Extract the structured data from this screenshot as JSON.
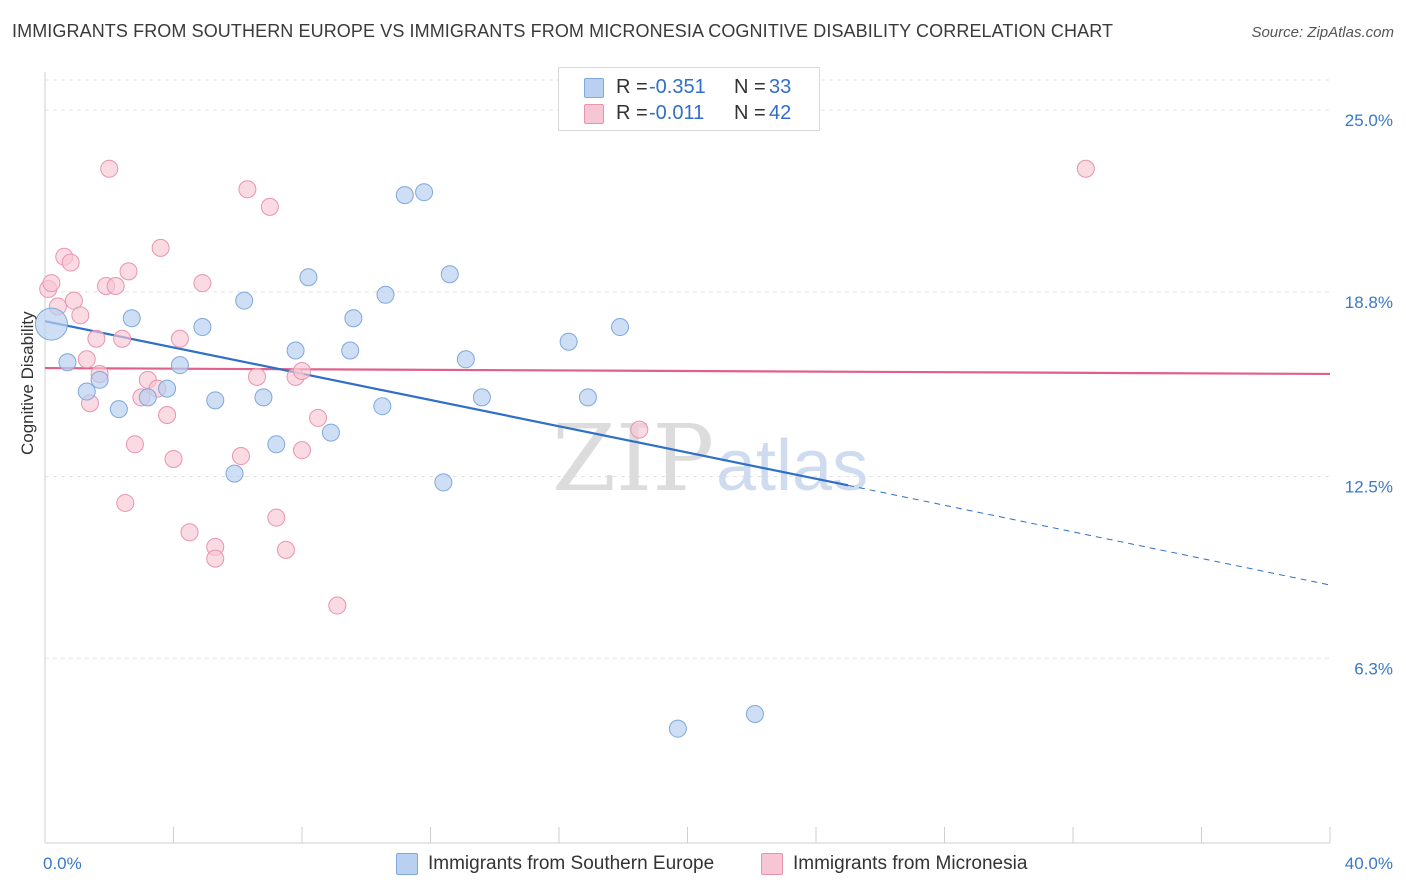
{
  "title": "IMMIGRANTS FROM SOUTHERN EUROPE VS IMMIGRANTS FROM MICRONESIA COGNITIVE DISABILITY CORRELATION CHART",
  "source": "Source: ZipAtlas.com",
  "watermark": {
    "zip": "ZIP",
    "atlas": "atlas"
  },
  "colors": {
    "blue_fill": "#b9d0f0",
    "blue_stroke": "#7fa8dc",
    "blue_line": "#2f6fc7",
    "pink_fill": "#f7c6d4",
    "pink_stroke": "#e994ae",
    "pink_line": "#e0608a",
    "axis_text": "#3a78c8",
    "grid": "#e3e3e3"
  },
  "legend": {
    "rows": [
      {
        "r_label": "R =",
        "r_value": "-0.351",
        "n_label": "N =",
        "n_value": "33",
        "color": "blue"
      },
      {
        "r_label": "R =",
        "r_value": "-0.011",
        "n_label": "N =",
        "n_value": "42",
        "color": "pink"
      }
    ]
  },
  "bottom_legend": [
    {
      "label": "Immigrants from Southern Europe",
      "color": "blue"
    },
    {
      "label": "Immigrants from Micronesia",
      "color": "pink"
    }
  ],
  "chart_data": {
    "type": "scatter",
    "title": "IMMIGRANTS FROM SOUTHERN EUROPE VS IMMIGRANTS FROM MICRONESIA COGNITIVE DISABILITY CORRELATION CHART",
    "xlabel": "",
    "ylabel": "Cognitive Disability",
    "xlim": [
      0,
      40
    ],
    "ylim": [
      0,
      26.3
    ],
    "x_tick_labels": [
      "0.0%",
      "40.0%"
    ],
    "y_ticks": [
      6.3,
      12.5,
      18.8,
      25.0
    ],
    "y_tick_labels": [
      "6.3%",
      "12.5%",
      "18.8%",
      "25.0%"
    ],
    "grid": true,
    "series": [
      {
        "name": "Immigrants from Southern Europe",
        "color": "blue",
        "points": [
          [
            0.2,
            17.7
          ],
          [
            0.7,
            16.4
          ],
          [
            1.3,
            15.4
          ],
          [
            1.7,
            15.8
          ],
          [
            2.3,
            14.8
          ],
          [
            2.7,
            17.9
          ],
          [
            3.2,
            15.2
          ],
          [
            3.8,
            15.5
          ],
          [
            4.2,
            16.3
          ],
          [
            4.9,
            17.6
          ],
          [
            5.3,
            15.1
          ],
          [
            5.9,
            12.6
          ],
          [
            6.2,
            18.5
          ],
          [
            6.8,
            15.2
          ],
          [
            7.2,
            13.6
          ],
          [
            7.8,
            16.8
          ],
          [
            8.2,
            19.3
          ],
          [
            8.9,
            14.0
          ],
          [
            9.5,
            16.8
          ],
          [
            9.6,
            17.9
          ],
          [
            10.5,
            14.9
          ],
          [
            10.6,
            18.7
          ],
          [
            11.2,
            22.1
          ],
          [
            11.8,
            22.2
          ],
          [
            12.4,
            12.3
          ],
          [
            12.6,
            19.4
          ],
          [
            13.1,
            16.5
          ],
          [
            13.6,
            15.2
          ],
          [
            16.3,
            17.1
          ],
          [
            16.9,
            15.2
          ],
          [
            17.9,
            17.6
          ],
          [
            19.7,
            3.9
          ],
          [
            22.1,
            4.4
          ]
        ],
        "trend": {
          "x": [
            0,
            25
          ],
          "y": [
            17.8,
            12.2
          ]
        },
        "trend_dashed": {
          "x": [
            25,
            40
          ],
          "y": [
            12.2,
            8.8
          ]
        }
      },
      {
        "name": "Immigrants from Micronesia",
        "color": "pink",
        "points": [
          [
            0.1,
            18.9
          ],
          [
            0.2,
            19.1
          ],
          [
            0.4,
            18.3
          ],
          [
            0.6,
            20.0
          ],
          [
            0.8,
            19.8
          ],
          [
            0.9,
            18.5
          ],
          [
            1.1,
            18.0
          ],
          [
            1.3,
            16.5
          ],
          [
            1.4,
            15.0
          ],
          [
            1.6,
            17.2
          ],
          [
            1.7,
            16.0
          ],
          [
            1.9,
            19.0
          ],
          [
            2.0,
            23.0
          ],
          [
            2.2,
            19.0
          ],
          [
            2.4,
            17.2
          ],
          [
            2.5,
            11.6
          ],
          [
            2.6,
            19.5
          ],
          [
            2.8,
            13.6
          ],
          [
            3.0,
            15.2
          ],
          [
            3.2,
            15.8
          ],
          [
            3.5,
            15.5
          ],
          [
            3.6,
            20.3
          ],
          [
            3.8,
            14.6
          ],
          [
            4.0,
            13.1
          ],
          [
            4.2,
            17.2
          ],
          [
            4.5,
            10.6
          ],
          [
            4.9,
            19.1
          ],
          [
            5.3,
            10.1
          ],
          [
            5.3,
            9.7
          ],
          [
            6.1,
            13.2
          ],
          [
            6.3,
            22.3
          ],
          [
            6.6,
            15.9
          ],
          [
            7.0,
            21.7
          ],
          [
            7.2,
            11.1
          ],
          [
            7.5,
            10.0
          ],
          [
            7.8,
            15.9
          ],
          [
            8.0,
            16.1
          ],
          [
            8.0,
            13.4
          ],
          [
            8.5,
            14.5
          ],
          [
            9.1,
            8.1
          ],
          [
            18.5,
            14.1
          ],
          [
            32.4,
            23.0
          ]
        ],
        "trend": {
          "x": [
            0,
            40
          ],
          "y": [
            16.2,
            16.0
          ]
        }
      }
    ]
  }
}
